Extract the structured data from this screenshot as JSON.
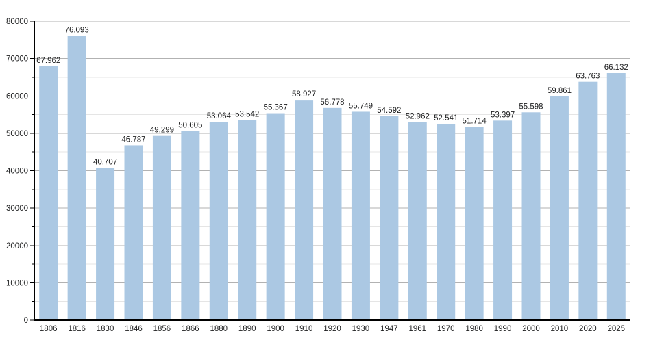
{
  "chart_data": {
    "type": "bar",
    "title": "",
    "xlabel": "",
    "ylabel": "",
    "categories": [
      "1806",
      "1816",
      "1830",
      "1846",
      "1856",
      "1866",
      "1880",
      "1890",
      "1900",
      "1910",
      "1920",
      "1930",
      "1947",
      "1961",
      "1970",
      "1980",
      "1990",
      "2000",
      "2010",
      "2020",
      "2025"
    ],
    "values": [
      67962,
      76093,
      40707,
      46787,
      49299,
      50605,
      53064,
      53542,
      55367,
      58927,
      56778,
      55749,
      54592,
      52962,
      52541,
      51714,
      53397,
      55598,
      59861,
      63763,
      66132
    ],
    "value_labels": [
      "67.962",
      "76.093",
      "40.707",
      "46.787",
      "49.299",
      "50.605",
      "53.064",
      "53.542",
      "55.367",
      "58.927",
      "56.778",
      "55.749",
      "54.592",
      "52.962",
      "52.541",
      "51.714",
      "53.397",
      "55.598",
      "59.861",
      "63.763",
      "66.132"
    ],
    "ylim": [
      0,
      80000
    ],
    "y_major_step": 10000,
    "y_minor_step": 5000,
    "ytick_labels": [
      "0",
      "10000",
      "20000",
      "30000",
      "40000",
      "50000",
      "60000",
      "70000",
      "80000"
    ],
    "grid": "major+minor",
    "legend": "none",
    "colors": {
      "bar_fill": "#abc8e3",
      "major_grid": "#b2b2b2",
      "minor_grid": "#e5e5e5",
      "axis": "#000000",
      "text": "#202122"
    }
  }
}
